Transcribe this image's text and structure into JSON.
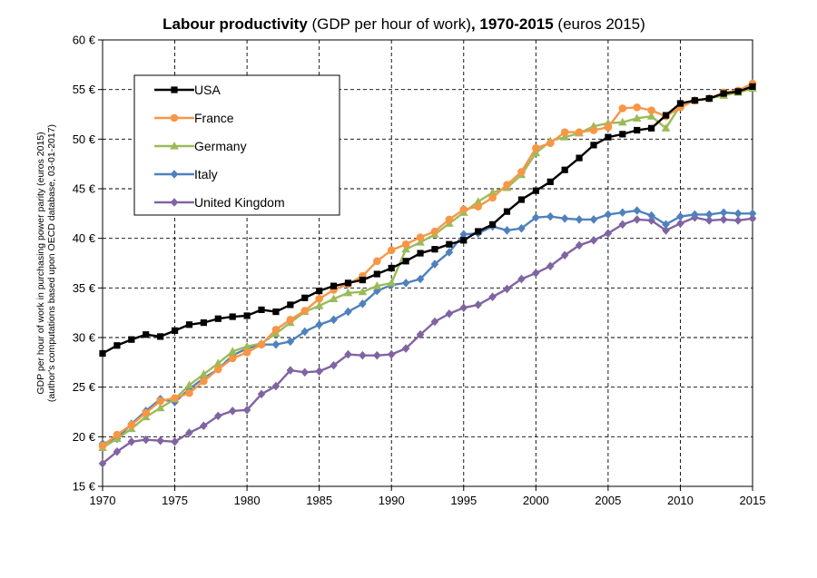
{
  "chart_data": {
    "type": "line",
    "title": {
      "bold_prefix": "Labour productivity",
      "normal_1": " (GDP per hour of work)",
      "bold_mid": ", 1970-2015",
      "normal_2": " (euros 2015)"
    },
    "ylabel": [
      "GDP per hour of work in purchasing power parity (euros 2015)",
      "(author's computations based upon OECD database, 03-01-2017)"
    ],
    "xlabel": "",
    "x": [
      1970,
      1971,
      1972,
      1973,
      1974,
      1975,
      1976,
      1977,
      1978,
      1979,
      1980,
      1981,
      1982,
      1983,
      1984,
      1985,
      1986,
      1987,
      1988,
      1989,
      1990,
      1991,
      1992,
      1993,
      1994,
      1995,
      1996,
      1997,
      1998,
      1999,
      2000,
      2001,
      2002,
      2003,
      2004,
      2005,
      2006,
      2007,
      2008,
      2009,
      2010,
      2011,
      2012,
      2013,
      2014,
      2015
    ],
    "xlim": [
      1970,
      2015
    ],
    "xticks": [
      1970,
      1975,
      1980,
      1985,
      1990,
      1995,
      2000,
      2005,
      2010,
      2015
    ],
    "ylim": [
      15,
      60
    ],
    "yticks": [
      15,
      20,
      25,
      30,
      35,
      40,
      45,
      50,
      55,
      60
    ],
    "ytick_labels": [
      "15 €",
      "20 €",
      "25 €",
      "30 €",
      "35 €",
      "40 €",
      "45 €",
      "50 €",
      "55 €",
      "60 €"
    ],
    "grid": true,
    "legend_position": "top-left",
    "series": [
      {
        "name": "USA",
        "color": "#000000",
        "marker": "square",
        "values": [
          28.4,
          29.2,
          29.8,
          30.3,
          30.1,
          30.7,
          31.3,
          31.5,
          31.9,
          32.1,
          32.2,
          32.8,
          32.6,
          33.3,
          34.0,
          34.7,
          35.2,
          35.5,
          35.8,
          36.4,
          37.0,
          37.7,
          38.5,
          38.9,
          39.4,
          39.8,
          40.7,
          41.4,
          42.7,
          43.9,
          44.8,
          45.7,
          46.9,
          48.1,
          49.4,
          50.2,
          50.5,
          50.9,
          51.1,
          52.4,
          53.6,
          53.9,
          54.1,
          54.6,
          54.8,
          55.3
        ]
      },
      {
        "name": "France",
        "color": "#F79646",
        "marker": "circle",
        "values": [
          19.1,
          20.2,
          21.2,
          22.4,
          23.6,
          23.9,
          24.4,
          25.6,
          26.8,
          27.9,
          28.5,
          29.3,
          30.8,
          31.8,
          32.7,
          33.9,
          34.8,
          35.4,
          36.2,
          37.7,
          38.8,
          39.4,
          40.1,
          40.7,
          41.9,
          42.9,
          43.2,
          44.1,
          45.4,
          46.7,
          49.1,
          49.6,
          50.7,
          50.7,
          50.9,
          51.2,
          53.1,
          53.2,
          52.9,
          52.3,
          53.2,
          53.9,
          54.1,
          54.7,
          54.9,
          55.6
        ]
      },
      {
        "name": "Germany",
        "color": "#9BBB59",
        "marker": "triangle",
        "values": [
          18.9,
          19.8,
          20.8,
          22.0,
          22.9,
          23.8,
          25.2,
          26.3,
          27.4,
          28.6,
          29.1,
          29.4,
          30.4,
          31.5,
          32.6,
          33.2,
          33.9,
          34.5,
          34.6,
          35.2,
          35.5,
          38.9,
          39.6,
          40.4,
          41.5,
          42.6,
          43.7,
          44.6,
          45.1,
          46.4,
          48.6,
          49.8,
          50.2,
          50.6,
          51.3,
          51.6,
          51.7,
          52.1,
          52.3,
          51.1,
          53.4,
          53.9,
          54.1,
          54.4,
          54.7,
          55.1
        ]
      },
      {
        "name": "Italy",
        "color": "#4F81BD",
        "marker": "diamond",
        "values": [
          19.3,
          19.8,
          21.3,
          22.6,
          23.8,
          23.5,
          24.8,
          25.9,
          26.8,
          28.2,
          28.9,
          29.3,
          29.3,
          29.6,
          30.6,
          31.3,
          31.8,
          32.6,
          33.4,
          34.7,
          35.3,
          35.5,
          35.9,
          37.4,
          38.6,
          40.4,
          40.5,
          41.2,
          40.8,
          41.0,
          42.1,
          42.2,
          42.0,
          41.9,
          41.9,
          42.4,
          42.6,
          42.8,
          42.3,
          41.4,
          42.2,
          42.4,
          42.4,
          42.6,
          42.5,
          42.5
        ]
      },
      {
        "name": "United Kingdom",
        "color": "#8064A2",
        "marker": "diamond",
        "values": [
          17.3,
          18.5,
          19.5,
          19.7,
          19.6,
          19.5,
          20.4,
          21.1,
          22.1,
          22.6,
          22.7,
          24.3,
          25.1,
          26.7,
          26.5,
          26.6,
          27.2,
          28.3,
          28.2,
          28.2,
          28.3,
          28.9,
          30.3,
          31.6,
          32.4,
          33.0,
          33.3,
          34.1,
          34.9,
          35.9,
          36.5,
          37.2,
          38.3,
          39.3,
          39.8,
          40.5,
          41.4,
          41.9,
          41.8,
          40.8,
          41.5,
          42.1,
          41.8,
          41.9,
          41.8,
          42.0
        ]
      }
    ]
  }
}
